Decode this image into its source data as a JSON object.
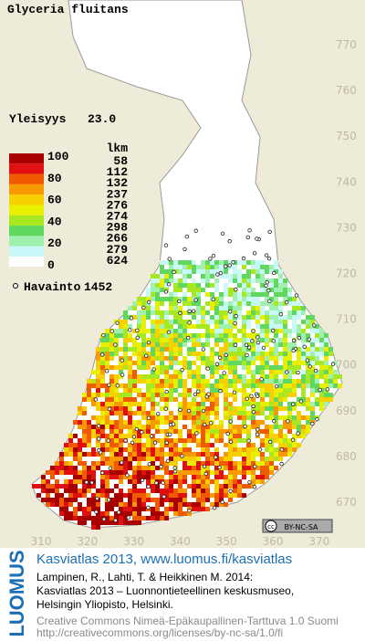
{
  "title": "Glyceria fluitans",
  "frequency": {
    "label": "Yleisyys",
    "value": "23.0"
  },
  "legend": {
    "scale": [
      100,
      80,
      60,
      40,
      20,
      0
    ],
    "count_header": "lkm",
    "counts": [
      58,
      112,
      132,
      237,
      276,
      274,
      298,
      266,
      279,
      624
    ]
  },
  "observations": {
    "label": "Havainto",
    "value": 1452
  },
  "y_grid_labels": [
    770,
    760,
    750,
    740,
    730,
    720,
    710,
    700,
    690,
    680,
    670
  ],
  "x_grid_labels": [
    310,
    320,
    330,
    340,
    350,
    360,
    370
  ],
  "license_badge": {
    "cc": "cc",
    "text": "BY-NC-SA"
  },
  "brand": "LUOMUS",
  "footer": {
    "link": "Kasviatlas 2013, www.luomus.fi/kasviatlas",
    "citation": [
      "Lampinen, R., Lahti, T. & Heikkinen M. 2014:",
      "Kasviatlas 2013 – Luonnontieteellinen keskusmuseo,",
      "Helsingin Yliopisto, Helsinki."
    ],
    "license_lines": [
      "Creative Commons Nimeä-Epäkaupallinen-Tarttuva 1.0 Suomi",
      "http://creativecommons.org/licenses/by-nc-sa/1.0/fi"
    ]
  }
}
